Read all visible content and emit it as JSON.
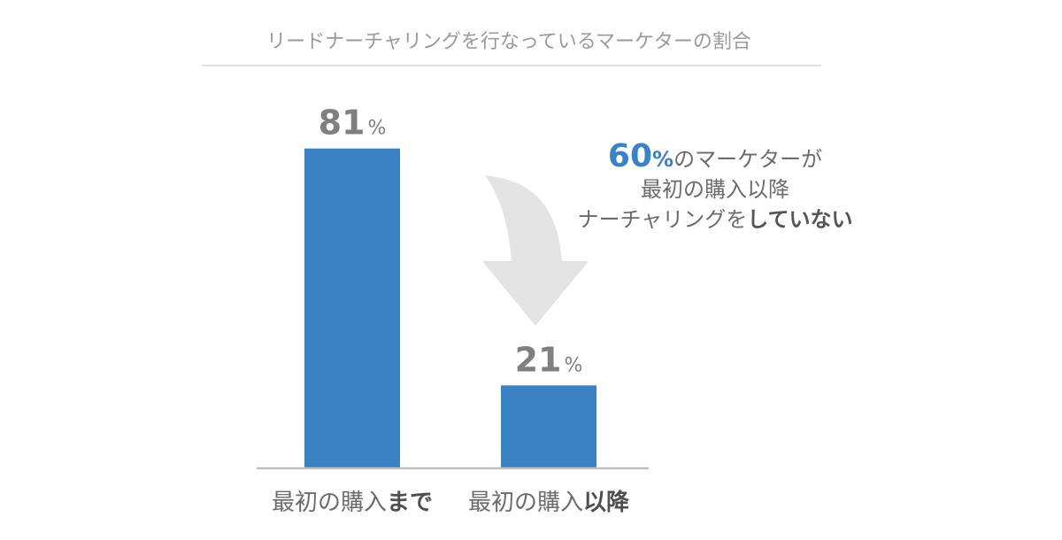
{
  "chart_data": {
    "type": "bar",
    "title": "リードナーチャリングを行なっているマーケターの割合",
    "categories": [
      {
        "prefix": "最初の購入",
        "emphasis": "まで"
      },
      {
        "prefix": "最初の購入",
        "emphasis": "以降"
      }
    ],
    "values": [
      81,
      21
    ],
    "value_unit": "%",
    "ylim": [
      0,
      100
    ],
    "bar_color": "#3a82c4",
    "annotation": {
      "value": "60",
      "unit": "%",
      "line1_rest": "のマーケターが",
      "line2": "最初の購入以降",
      "line3_prefix": "ナーチャリングを",
      "line3_emphasis": "していない",
      "accent_color": "#3a82c4"
    },
    "arrow_color": "#e3e3e3",
    "axis_color": "#bfbfbf"
  }
}
